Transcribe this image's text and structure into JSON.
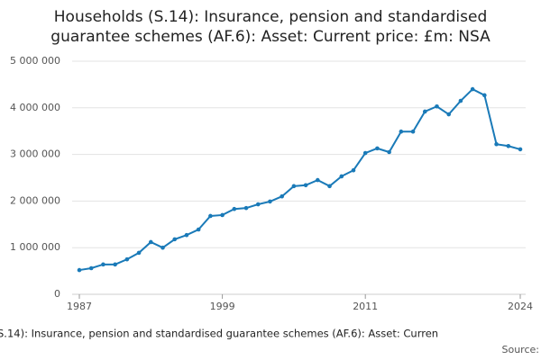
{
  "chart_data": {
    "type": "line",
    "title": [
      "Households (S.14): Insurance, pension and standardised",
      "guarantee schemes (AF.6): Asset: Current price: £m: NSA"
    ],
    "footer": "S.14): Insurance, pension and standardised guarantee schemes (AF.6): Asset: Curren",
    "source": "Source:",
    "x": [
      1987,
      1988,
      1989,
      1990,
      1991,
      1992,
      1993,
      1994,
      1995,
      1996,
      1997,
      1998,
      1999,
      2000,
      2001,
      2002,
      2003,
      2004,
      2005,
      2006,
      2007,
      2008,
      2009,
      2010,
      2011,
      2012,
      2013,
      2014,
      2015,
      2016,
      2017,
      2018,
      2019,
      2020,
      2021,
      2022,
      2023,
      2024
    ],
    "series": [
      {
        "color": "#1a7ab8",
        "values": [
          520000,
          560000,
          640000,
          640000,
          750000,
          890000,
          1120000,
          1000000,
          1180000,
          1270000,
          1390000,
          1680000,
          1700000,
          1830000,
          1850000,
          1930000,
          1990000,
          2100000,
          2320000,
          2340000,
          2450000,
          2320000,
          2530000,
          2660000,
          3030000,
          3130000,
          3050000,
          3490000,
          3490000,
          3920000,
          4030000,
          3860000,
          4150000,
          4400000,
          4270000,
          3220000,
          3180000,
          3110000
        ]
      }
    ],
    "xlim": [
      1987,
      2024
    ],
    "xticks": [
      1987,
      1999,
      2011,
      2024
    ],
    "ylim": [
      0,
      5000000
    ],
    "yticks": [
      0,
      {
        "value": 1000000,
        "label": "1 000 000"
      },
      {
        "value": 2000000,
        "label": "2 000 000"
      },
      {
        "value": 3000000,
        "label": "3 000 000"
      },
      {
        "value": 4000000,
        "label": "4 000 000"
      },
      {
        "value": 5000000,
        "label": "5 000 000"
      }
    ],
    "grid": true
  }
}
